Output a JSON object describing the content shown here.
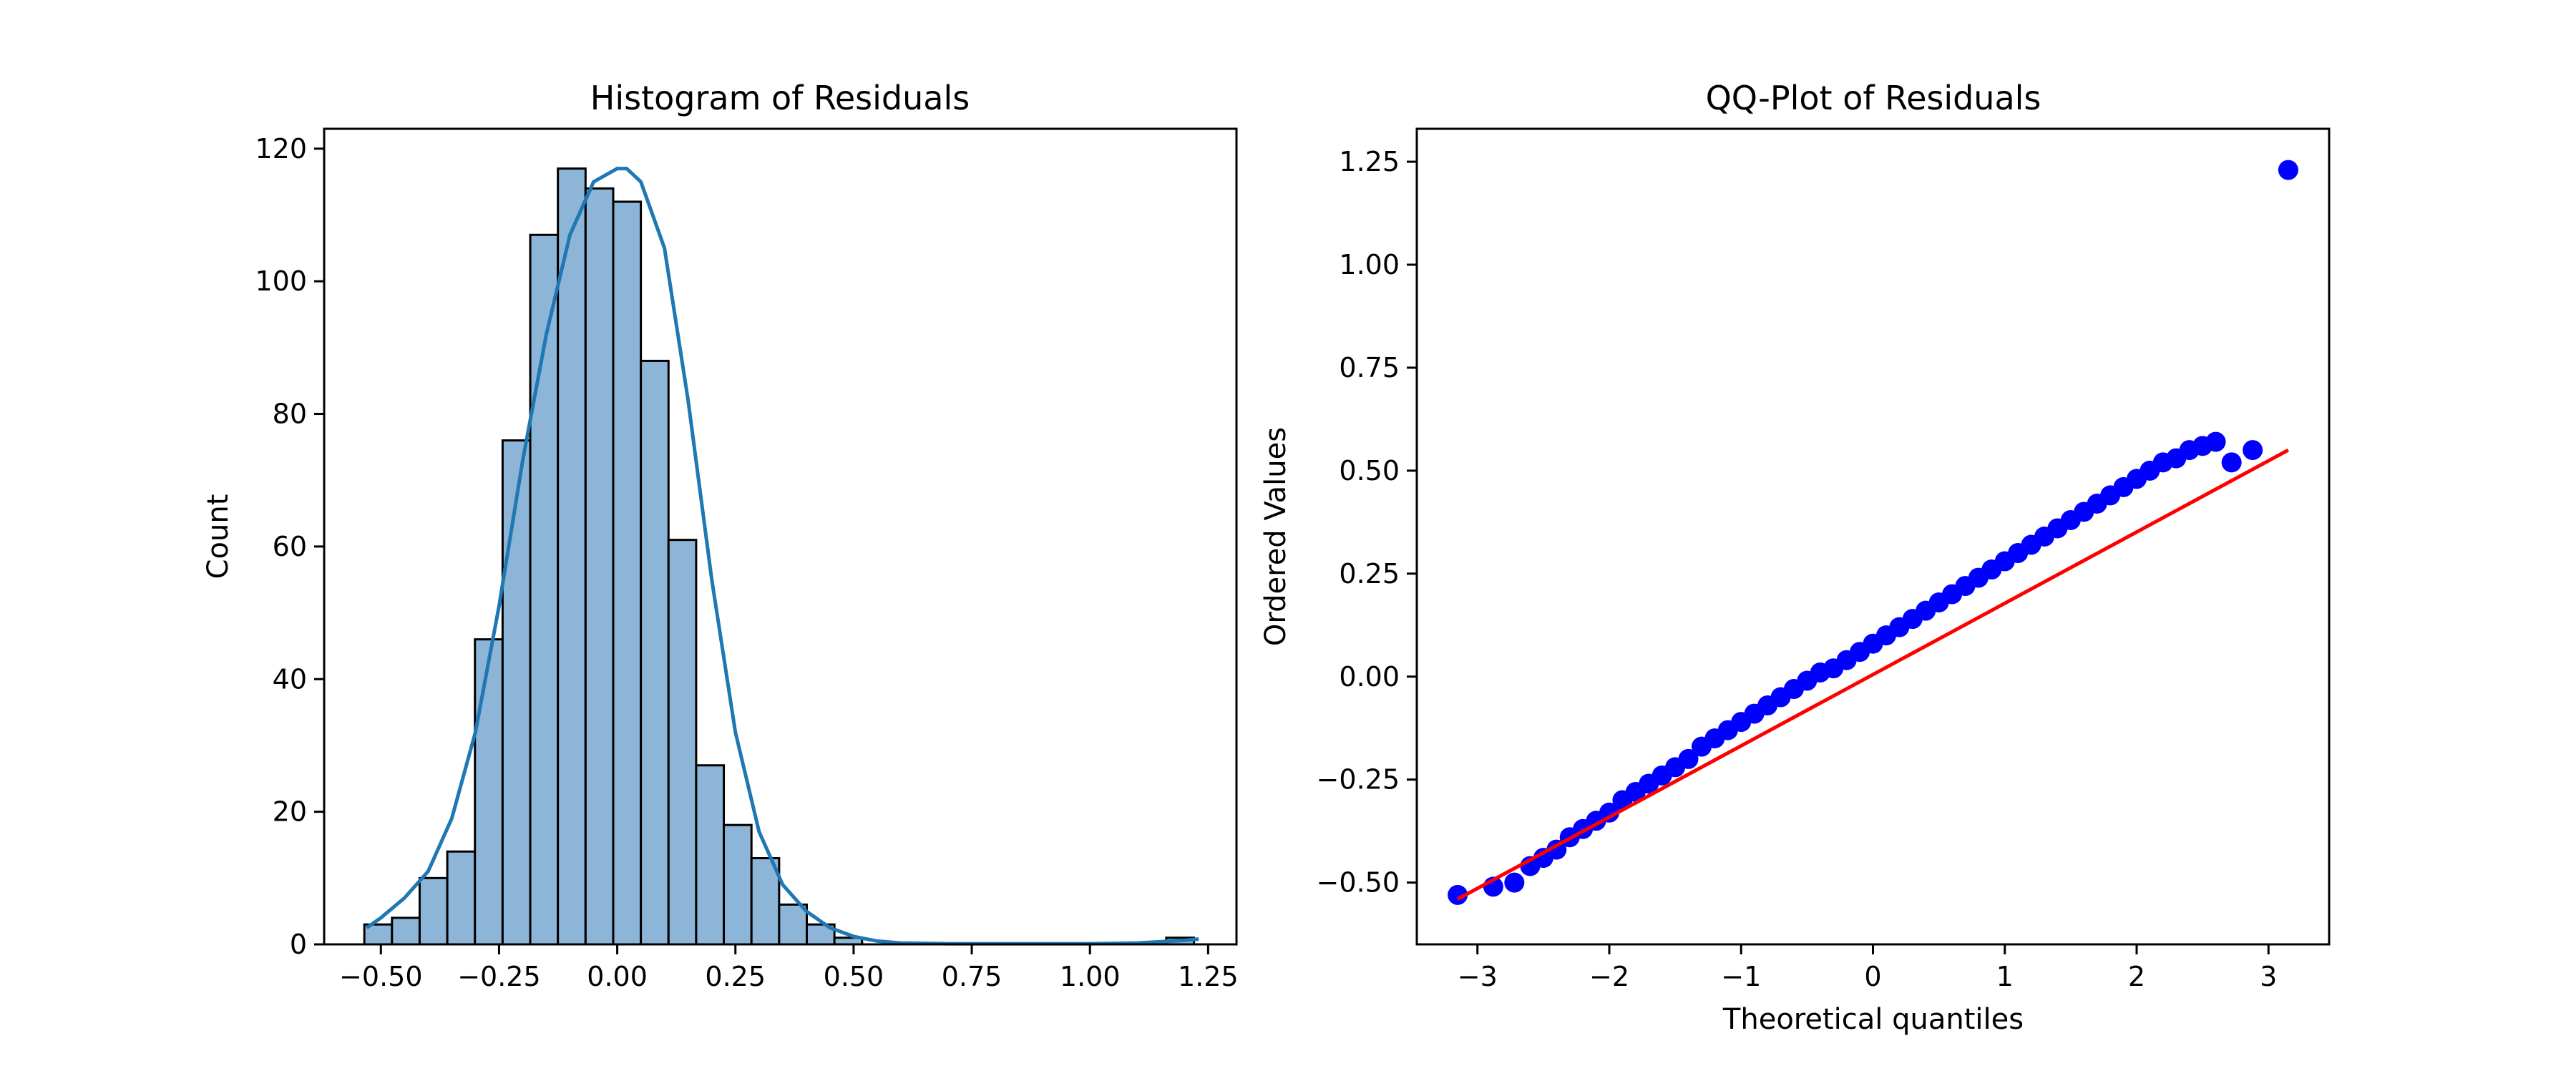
{
  "chart_data": [
    {
      "type": "bar",
      "title": "Histogram of Residuals",
      "xlabel": "",
      "ylabel": "Count",
      "xlim": [
        -0.62,
        1.31
      ],
      "ylim": [
        0,
        123
      ],
      "xticks": [
        -0.5,
        -0.25,
        0.0,
        0.25,
        0.5,
        0.75,
        1.0,
        1.25
      ],
      "xtick_labels": [
        "−0.50",
        "−0.25",
        "0.00",
        "0.25",
        "0.50",
        "0.75",
        "1.00",
        "1.25"
      ],
      "yticks": [
        0,
        20,
        40,
        60,
        80,
        100,
        120
      ],
      "ytick_labels": [
        "0",
        "20",
        "40",
        "60",
        "80",
        "100",
        "120"
      ],
      "bin_start": -0.535,
      "bin_width": 0.0585,
      "values": [
        3,
        4,
        10,
        14,
        46,
        76,
        107,
        117,
        114,
        112,
        88,
        61,
        27,
        18,
        13,
        6,
        3,
        1,
        0,
        0,
        0,
        0,
        0,
        0,
        0,
        0,
        0,
        0,
        0,
        1
      ],
      "bar_color": "#8db5d8",
      "edge_color": "#000000",
      "kde": {
        "x": [
          -0.53,
          -0.5,
          -0.45,
          -0.4,
          -0.35,
          -0.3,
          -0.25,
          -0.2,
          -0.15,
          -0.1,
          -0.05,
          0.0,
          0.02,
          0.05,
          0.1,
          0.15,
          0.2,
          0.25,
          0.3,
          0.35,
          0.4,
          0.45,
          0.5,
          0.55,
          0.6,
          0.7,
          0.8,
          0.9,
          1.0,
          1.1,
          1.2,
          1.23
        ],
        "y": [
          2.5,
          4,
          7,
          11,
          19,
          32,
          51,
          73,
          92,
          107,
          115,
          117,
          117,
          115,
          105,
          82,
          55,
          32,
          17,
          9,
          5,
          2.5,
          1.2,
          0.5,
          0.2,
          0.1,
          0.1,
          0.1,
          0.1,
          0.2,
          0.6,
          0.8
        ],
        "color": "#1f77b4"
      }
    },
    {
      "type": "scatter",
      "title": "QQ-Plot of Residuals",
      "xlabel": "Theoretical quantiles",
      "ylabel": "Ordered Values",
      "xlim": [
        -3.46,
        3.46
      ],
      "ylim": [
        -0.65,
        1.33
      ],
      "xticks": [
        -3,
        -2,
        -1,
        0,
        1,
        2,
        3
      ],
      "xtick_labels": [
        "−3",
        "−2",
        "−1",
        "0",
        "1",
        "2",
        "3"
      ],
      "yticks": [
        -0.5,
        -0.25,
        0.0,
        0.25,
        0.5,
        0.75,
        1.0,
        1.25
      ],
      "ytick_labels": [
        "−0.50",
        "−0.25",
        "0.00",
        "0.25",
        "0.50",
        "0.75",
        "1.00",
        "1.25"
      ],
      "points": {
        "x": [
          -3.15,
          -2.88,
          -2.72,
          -2.6,
          -2.5,
          -2.4,
          -2.3,
          -2.2,
          -2.1,
          -2.0,
          -1.9,
          -1.8,
          -1.7,
          -1.6,
          -1.5,
          -1.4,
          -1.3,
          -1.2,
          -1.1,
          -1.0,
          -0.9,
          -0.8,
          -0.7,
          -0.6,
          -0.5,
          -0.4,
          -0.3,
          -0.2,
          -0.1,
          0.0,
          0.1,
          0.2,
          0.3,
          0.4,
          0.5,
          0.6,
          0.7,
          0.8,
          0.9,
          1.0,
          1.1,
          1.2,
          1.3,
          1.4,
          1.5,
          1.6,
          1.7,
          1.8,
          1.9,
          2.0,
          2.1,
          2.2,
          2.3,
          2.4,
          2.5,
          2.6,
          2.72,
          2.88,
          3.15
        ],
        "y": [
          -0.53,
          -0.51,
          -0.5,
          -0.46,
          -0.44,
          -0.42,
          -0.39,
          -0.37,
          -0.35,
          -0.33,
          -0.3,
          -0.28,
          -0.26,
          -0.24,
          -0.22,
          -0.2,
          -0.17,
          -0.15,
          -0.13,
          -0.11,
          -0.09,
          -0.07,
          -0.05,
          -0.03,
          -0.01,
          0.01,
          0.02,
          0.04,
          0.06,
          0.08,
          0.1,
          0.12,
          0.14,
          0.16,
          0.18,
          0.2,
          0.22,
          0.24,
          0.26,
          0.28,
          0.3,
          0.32,
          0.34,
          0.36,
          0.38,
          0.4,
          0.42,
          0.44,
          0.46,
          0.48,
          0.5,
          0.52,
          0.53,
          0.55,
          0.56,
          0.57,
          0.52,
          0.55,
          1.23
        ],
        "color": "#0000ff"
      },
      "fit_line": {
        "x": [
          -3.15,
          3.15
        ],
        "y": [
          -0.54,
          0.55
        ],
        "color": "#ff0000"
      }
    }
  ]
}
